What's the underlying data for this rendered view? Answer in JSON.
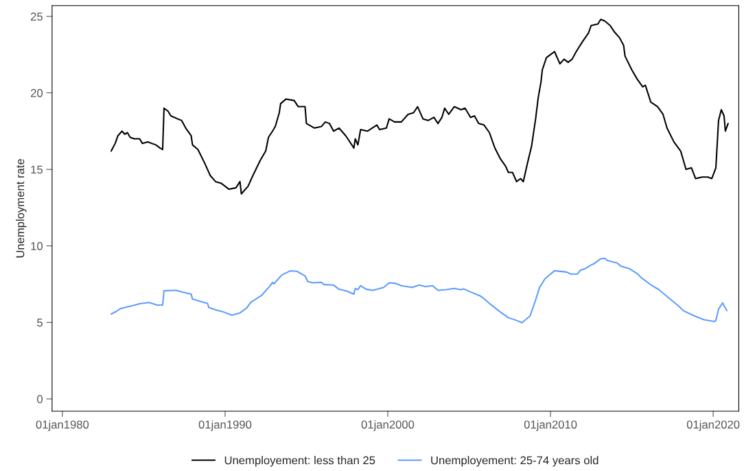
{
  "chart_data": {
    "type": "line",
    "ylabel": "Unemployment rate",
    "xlim": [
      "1979-05-15",
      "2021-07-29"
    ],
    "ylim": [
      -0.8,
      25.7
    ],
    "xticks": [
      {
        "value": "1980-01-01",
        "label": "01jan1980"
      },
      {
        "value": "1990-01-01",
        "label": "01jan1990"
      },
      {
        "value": "2000-01-01",
        "label": "01jan2000"
      },
      {
        "value": "2010-01-01",
        "label": "01jan2010"
      },
      {
        "value": "2020-01-01",
        "label": "01jan2020"
      }
    ],
    "yticks": [
      0,
      5,
      10,
      15,
      20,
      25
    ],
    "grid": false,
    "legend": "bottom",
    "marker": "none",
    "line_style": "solid",
    "series": [
      {
        "name": "Unemployement: less than 25",
        "color": "#000000",
        "x": [
          "1983-01",
          "1983-04",
          "1983-06",
          "1983-09",
          "1983-11",
          "1984-01",
          "1984-03",
          "1984-06",
          "1984-10",
          "1984-12",
          "1985-04",
          "1985-10",
          "1986-01",
          "1986-03",
          "1986-04",
          "1986-07",
          "1986-09",
          "1987-02",
          "1987-05",
          "1987-08",
          "1987-12",
          "1988-01",
          "1988-05",
          "1988-10",
          "1989-02",
          "1989-06",
          "1989-10",
          "1990-04",
          "1990-09",
          "1990-12",
          "1991-01",
          "1991-06",
          "1991-09",
          "1992-03",
          "1992-07",
          "1992-09",
          "1992-12",
          "1993-02",
          "1993-05",
          "1993-06",
          "1993-10",
          "1994-04",
          "1994-07",
          "1994-12",
          "1995-01",
          "1995-07",
          "1995-12",
          "1996-03",
          "1996-06",
          "1996-09",
          "1997-01",
          "1997-06",
          "1997-12",
          "1998-01",
          "1998-03",
          "1998-05",
          "1998-10",
          "1999-05",
          "1999-07",
          "1999-12",
          "2000-02",
          "2000-06",
          "2000-11",
          "2001-04",
          "2001-08",
          "2001-11",
          "2002-03",
          "2002-07",
          "2002-11",
          "2003-02",
          "2003-05",
          "2003-07",
          "2003-10",
          "2004-02",
          "2004-07",
          "2004-10",
          "2005-02",
          "2005-05",
          "2005-08",
          "2005-12",
          "2006-04",
          "2006-08",
          "2006-12",
          "2007-04",
          "2007-06",
          "2007-09",
          "2007-12",
          "2008-03",
          "2008-05",
          "2008-08",
          "2008-11",
          "2009-02",
          "2009-04",
          "2009-06",
          "2009-07",
          "2009-10",
          "2010-01",
          "2010-04",
          "2010-08",
          "2010-11",
          "2011-02",
          "2011-05",
          "2011-08",
          "2012-01",
          "2012-05",
          "2012-07",
          "2012-12",
          "2013-02",
          "2013-05",
          "2013-09",
          "2013-12",
          "2014-04",
          "2014-07",
          "2014-08",
          "2015-01",
          "2015-05",
          "2015-09",
          "2015-11",
          "2016-03",
          "2016-08",
          "2016-12",
          "2017-03",
          "2017-08",
          "2018-01",
          "2018-05",
          "2018-09",
          "2018-12",
          "2019-05",
          "2019-09",
          "2019-12",
          "2020-03",
          "2020-05",
          "2020-07",
          "2020-09",
          "2020-10",
          "2020-12"
        ],
        "values": [
          16.2,
          16.7,
          17.2,
          17.5,
          17.3,
          17.4,
          17.1,
          17.0,
          17.0,
          16.7,
          16.8,
          16.6,
          16.4,
          16.3,
          19.0,
          18.8,
          18.5,
          18.3,
          18.2,
          17.7,
          17.2,
          16.6,
          16.3,
          15.4,
          14.6,
          14.2,
          14.1,
          13.7,
          13.8,
          14.2,
          13.4,
          13.9,
          14.5,
          15.6,
          16.2,
          17.1,
          17.5,
          17.8,
          18.7,
          19.3,
          19.6,
          19.5,
          19.1,
          19.1,
          18.0,
          17.7,
          17.8,
          18.1,
          18.0,
          17.5,
          17.7,
          17.2,
          16.4,
          17.0,
          16.6,
          17.6,
          17.5,
          17.9,
          17.6,
          17.7,
          18.3,
          18.1,
          18.1,
          18.6,
          18.7,
          19.1,
          18.3,
          18.2,
          18.4,
          18.0,
          18.4,
          19.0,
          18.6,
          19.1,
          18.9,
          19.0,
          18.4,
          18.5,
          18.0,
          17.9,
          17.4,
          16.4,
          15.7,
          15.2,
          14.8,
          14.8,
          14.2,
          14.4,
          14.2,
          15.4,
          16.5,
          18.3,
          19.7,
          20.7,
          21.5,
          22.3,
          22.5,
          22.7,
          21.9,
          22.2,
          22.0,
          22.2,
          22.7,
          23.4,
          23.9,
          24.4,
          24.5,
          24.8,
          24.7,
          24.4,
          24.0,
          23.6,
          23.1,
          22.4,
          21.5,
          20.9,
          20.4,
          20.5,
          19.4,
          19.1,
          18.6,
          17.7,
          16.8,
          16.2,
          15.0,
          15.1,
          14.4,
          14.5,
          14.5,
          14.4,
          15.1,
          18.2,
          18.9,
          18.5,
          17.5,
          18.0
        ]
      },
      {
        "name": "Unemployement: 25-74 years old",
        "color": "#5e9cfc",
        "x": [
          "1983-01",
          "1983-05",
          "1983-08",
          "1983-12",
          "1984-05",
          "1984-10",
          "1985-05",
          "1985-11",
          "1986-03",
          "1986-04",
          "1987-01",
          "1987-06",
          "1987-12",
          "1988-01",
          "1988-07",
          "1988-12",
          "1989-01",
          "1989-07",
          "1989-12",
          "1990-06",
          "1990-12",
          "1991-05",
          "1991-08",
          "1992-04",
          "1992-10",
          "1992-12",
          "1993-01",
          "1993-07",
          "1994-01",
          "1994-06",
          "1994-12",
          "1995-02",
          "1995-06",
          "1995-12",
          "1996-02",
          "1996-09",
          "1997-01",
          "1997-07",
          "1997-12",
          "1998-01",
          "1998-03",
          "1998-05",
          "1998-09",
          "1999-02",
          "1999-10",
          "2000-02",
          "2000-07",
          "2000-11",
          "2001-07",
          "2001-12",
          "2002-05",
          "2002-10",
          "2003-02",
          "2003-08",
          "2004-02",
          "2004-07",
          "2004-09",
          "2005-02",
          "2005-09",
          "2005-12",
          "2006-05",
          "2006-12",
          "2007-06",
          "2007-12",
          "2008-04",
          "2008-10",
          "2009-02",
          "2009-05",
          "2009-09",
          "2010-04",
          "2011-01",
          "2011-04",
          "2011-09",
          "2011-11",
          "2012-03",
          "2012-07",
          "2012-09",
          "2013-02",
          "2013-05",
          "2013-07",
          "2014-02",
          "2014-05",
          "2014-11",
          "2015-05",
          "2015-08",
          "2016-04",
          "2016-09",
          "2017-05",
          "2017-12",
          "2018-03",
          "2018-10",
          "2019-06",
          "2020-02",
          "2020-03",
          "2020-05",
          "2020-08",
          "2020-09",
          "2020-11"
        ],
        "values": [
          5.55,
          5.73,
          5.91,
          6.0,
          6.1,
          6.22,
          6.3,
          6.13,
          6.14,
          7.07,
          7.1,
          6.97,
          6.85,
          6.52,
          6.37,
          6.25,
          5.98,
          5.8,
          5.68,
          5.47,
          5.62,
          5.95,
          6.32,
          6.77,
          7.37,
          7.62,
          7.52,
          8.11,
          8.37,
          8.34,
          8.04,
          7.67,
          7.59,
          7.62,
          7.47,
          7.44,
          7.17,
          7.04,
          6.85,
          7.22,
          7.15,
          7.4,
          7.17,
          7.1,
          7.29,
          7.59,
          7.55,
          7.4,
          7.29,
          7.44,
          7.34,
          7.4,
          7.1,
          7.14,
          7.22,
          7.14,
          7.19,
          6.99,
          6.74,
          6.55,
          6.17,
          5.68,
          5.31,
          5.13,
          4.98,
          5.43,
          6.47,
          7.29,
          7.86,
          8.38,
          8.29,
          8.16,
          8.16,
          8.41,
          8.53,
          8.76,
          8.83,
          9.16,
          9.19,
          9.05,
          8.89,
          8.67,
          8.52,
          8.19,
          7.92,
          7.4,
          7.14,
          6.55,
          6.03,
          5.77,
          5.47,
          5.18,
          5.06,
          5.13,
          5.87,
          6.28,
          6.1,
          5.77
        ]
      }
    ]
  }
}
